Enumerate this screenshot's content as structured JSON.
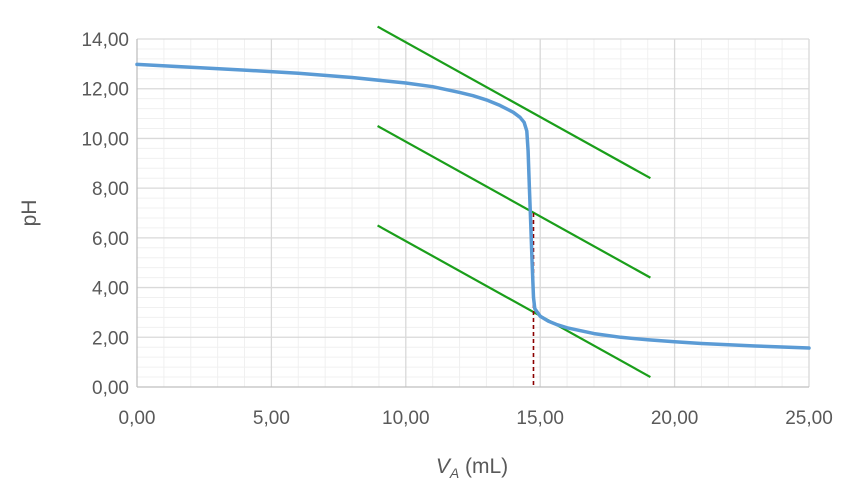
{
  "chart_data": {
    "type": "line",
    "title": "",
    "xlabel": {
      "main": "V",
      "subscript": "A",
      "unit": " (mL)"
    },
    "ylabel": "pH",
    "xlim": [
      0,
      25
    ],
    "ylim": [
      0,
      14
    ],
    "x_ticks": [
      "0,00",
      "5,00",
      "10,00",
      "15,00",
      "20,00",
      "25,00"
    ],
    "y_ticks": [
      "0,00",
      "2,00",
      "4,00",
      "6,00",
      "8,00",
      "10,00",
      "12,00",
      "14,00"
    ],
    "grid": {
      "major": true,
      "minor": true
    },
    "colors": {
      "curve": "#5b9bd5",
      "tangents": "#1a9e1a",
      "equivalence": "#8b0000",
      "major_grid": "#d9d9d9",
      "minor_grid": "#f0f0f0",
      "axis": "#bfbfbf"
    },
    "series": [
      {
        "values": [
          [
            0.0,
            12.98
          ],
          [
            2.0,
            12.86
          ],
          [
            4.0,
            12.75
          ],
          [
            6.0,
            12.62
          ],
          [
            8.0,
            12.45
          ],
          [
            10.0,
            12.23
          ],
          [
            11.0,
            12.08
          ],
          [
            12.0,
            11.85
          ],
          [
            12.5,
            11.72
          ],
          [
            13.0,
            11.55
          ],
          [
            13.5,
            11.33
          ],
          [
            14.0,
            11.05
          ],
          [
            14.25,
            10.85
          ],
          [
            14.4,
            10.65
          ],
          [
            14.5,
            10.3
          ],
          [
            14.55,
            9.5
          ],
          [
            14.6,
            8.0
          ],
          [
            14.65,
            6.5
          ],
          [
            14.7,
            5.0
          ],
          [
            14.75,
            3.6
          ],
          [
            14.8,
            3.15
          ],
          [
            14.9,
            3.0
          ],
          [
            15.0,
            2.85
          ],
          [
            15.3,
            2.65
          ],
          [
            15.6,
            2.52
          ],
          [
            16.0,
            2.38
          ],
          [
            17.0,
            2.15
          ],
          [
            18.0,
            2.0
          ],
          [
            19.0,
            1.9
          ],
          [
            20.0,
            1.82
          ],
          [
            21.0,
            1.75
          ],
          [
            22.0,
            1.7
          ],
          [
            23.0,
            1.65
          ],
          [
            24.0,
            1.61
          ],
          [
            25.0,
            1.57
          ]
        ]
      }
    ],
    "tangent_lines": [
      {
        "values": [
          [
            8.95,
            14.5
          ],
          [
            19.1,
            8.4
          ]
        ]
      },
      {
        "values": [
          [
            8.95,
            10.5
          ],
          [
            19.1,
            4.4
          ]
        ]
      },
      {
        "values": [
          [
            8.95,
            6.5
          ],
          [
            19.1,
            0.4
          ]
        ]
      }
    ],
    "equivalence_line": {
      "x": 14.75,
      "y_top": 7.0
    }
  }
}
